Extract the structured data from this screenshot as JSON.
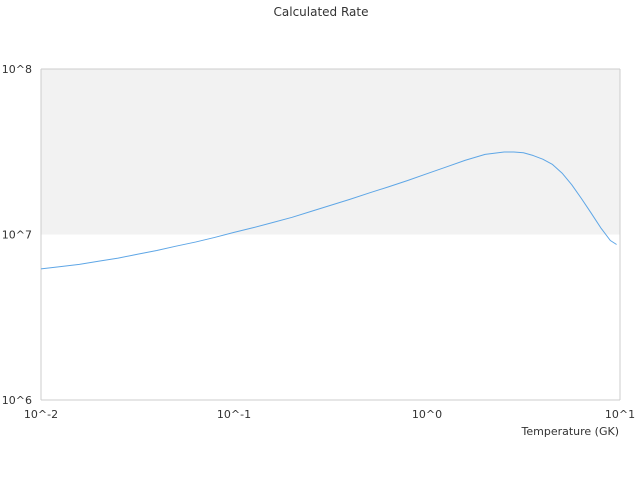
{
  "chart_data": {
    "type": "line",
    "title": "Calculated Rate",
    "xlabel": "Temperature (GK)",
    "ylabel": "",
    "x_scale": "log",
    "y_scale": "log",
    "xlim": [
      0.01,
      10
    ],
    "ylim": [
      1000000,
      100000000
    ],
    "x_ticks": [
      0.01,
      0.1,
      1,
      10
    ],
    "x_tick_labels": [
      "10^-2",
      "10^-1",
      "10^0",
      "10^1"
    ],
    "y_ticks": [
      1000000,
      10000000,
      100000000
    ],
    "y_tick_labels": [
      "10^6",
      "10^7",
      "10^8"
    ],
    "grid": false,
    "legend": "none",
    "band": {
      "from": 10000000,
      "to": 100000000,
      "color": "#f2f2f2"
    },
    "colors": {
      "line": "#5ea6e6",
      "axis": "#cccccc"
    },
    "series": [
      {
        "x": [
          0.01,
          0.0126,
          0.0158,
          0.02,
          0.0251,
          0.0316,
          0.0398,
          0.05,
          0.0631,
          0.0794,
          0.1,
          0.126,
          0.158,
          0.2,
          0.251,
          0.316,
          0.398,
          0.5,
          0.631,
          0.794,
          1.0,
          1.26,
          1.58,
          2.0,
          2.51,
          2.82,
          3.16,
          3.55,
          3.98,
          4.47,
          5.01,
          5.62,
          6.31,
          7.08,
          7.94,
          8.91,
          9.6
        ],
        "y": [
          6200000,
          6400000,
          6600000,
          6900000,
          7200000,
          7600000,
          8000000,
          8500000,
          9000000,
          9600000,
          10300000,
          11000000,
          11800000,
          12700000,
          13800000,
          15000000,
          16300000,
          17800000,
          19400000,
          21200000,
          23300000,
          25600000,
          28100000,
          30500000,
          31500000,
          31500000,
          31200000,
          30000000,
          28500000,
          26500000,
          23500000,
          20000000,
          16500000,
          13500000,
          11000000,
          9200000,
          8700000
        ]
      }
    ]
  }
}
